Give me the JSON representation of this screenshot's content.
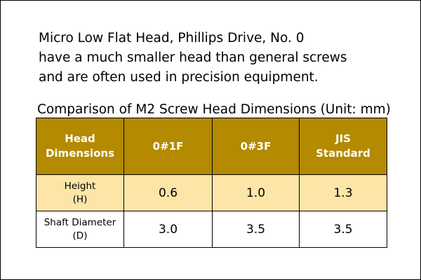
{
  "intro": {
    "line1": "Micro Low Flat Head, Phillips Drive, No. 0",
    "line2": "have a much smaller head than general screws",
    "line3": "and are often used in precision equipment."
  },
  "caption": "Comparison of M2 Screw Head Dimensions (Unit: mm)",
  "table": {
    "headers": {
      "col1_line1": "Head",
      "col1_line2": "Dimensions",
      "col2": "0#1F",
      "col3": "0#3F",
      "col4_line1": "JIS",
      "col4_line2": "Standard"
    },
    "rows": [
      {
        "label_line1": "Height",
        "label_line2": "(H)",
        "values": [
          "0.6",
          "1.0",
          "1.3"
        ]
      },
      {
        "label_line1": "Shaft Diameter",
        "label_line2": "(D)",
        "values": [
          "3.0",
          "3.5",
          "3.5"
        ]
      }
    ]
  },
  "colors": {
    "header_bg": "#b38a00",
    "header_text": "#ffffff",
    "highlight_row_bg": "#fde5a8",
    "border": "#000000"
  }
}
